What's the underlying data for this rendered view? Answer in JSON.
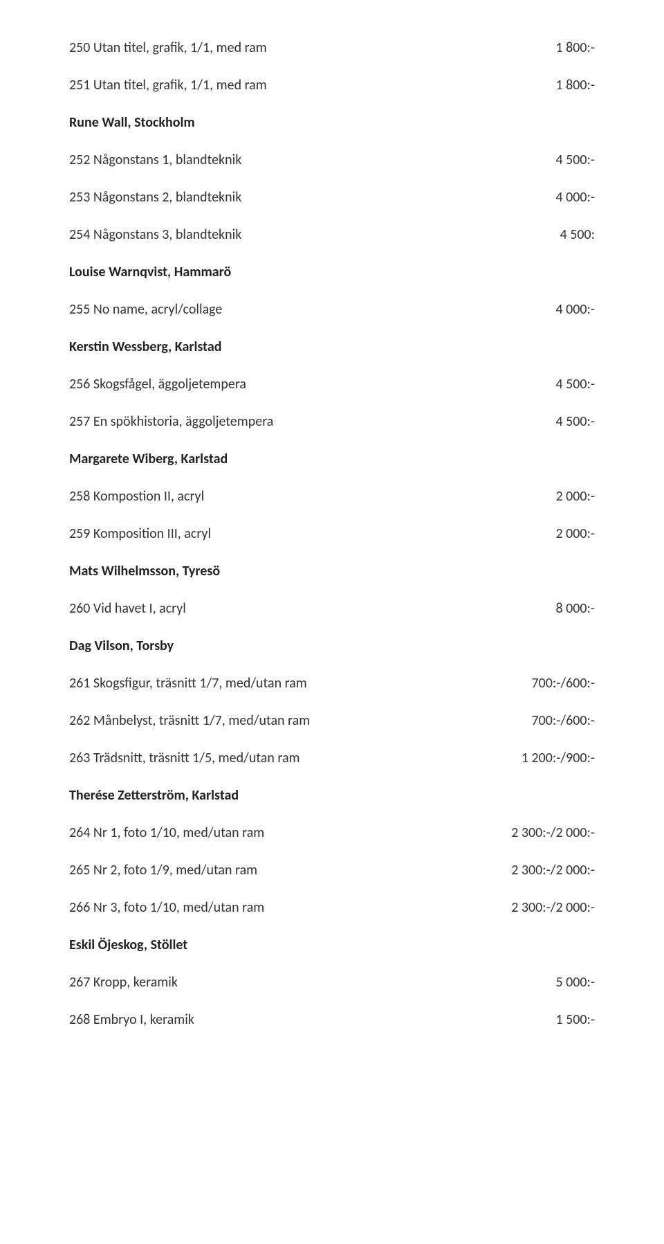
{
  "rows": [
    {
      "left": "250 Utan titel, grafik, 1/1, med ram",
      "right": "1 800:-",
      "bold": false
    },
    {
      "left": "251 Utan titel, grafik, 1/1, med ram",
      "right": "1 800:-",
      "bold": false
    },
    {
      "left": "Rune Wall, Stockholm",
      "right": "",
      "bold": true
    },
    {
      "left": "252 Någonstans 1, blandteknik",
      "right": "4 500:-",
      "bold": false
    },
    {
      "left": "253 Någonstans 2, blandteknik",
      "right": "4 000:-",
      "bold": false
    },
    {
      "left": "254 Någonstans 3, blandteknik",
      "right": "4 500:",
      "bold": false
    },
    {
      "left": "Louise Warnqvist, Hammarö",
      "right": "",
      "bold": true
    },
    {
      "left": "255 No name, acryl/collage",
      "right": "4 000:-",
      "bold": false
    },
    {
      "left": "Kerstin Wessberg, Karlstad",
      "right": "",
      "bold": true
    },
    {
      "left": "256 Skogsfågel, äggoljetempera",
      "right": "4 500:-",
      "bold": false
    },
    {
      "left": "257 En spökhistoria, äggoljetempera",
      "right": "4 500:-",
      "bold": false
    },
    {
      "left": "Margarete Wiberg, Karlstad",
      "right": "",
      "bold": true
    },
    {
      "left": "258 Kompostion II, acryl",
      "right": "2 000:-",
      "bold": false
    },
    {
      "left": "259 Komposition III, acryl",
      "right": "2 000:-",
      "bold": false
    },
    {
      "left": "Mats Wilhelmsson, Tyresö",
      "right": "",
      "bold": true
    },
    {
      "left": "260 Vid havet I, acryl",
      "right": "8 000:-",
      "bold": false
    },
    {
      "left": "Dag Vilson, Torsby",
      "right": "",
      "bold": true
    },
    {
      "left": "261 Skogsfigur, träsnitt 1/7, med/utan ram",
      "right": "700:-/600:-",
      "bold": false
    },
    {
      "left": "262 Månbelyst, träsnitt 1/7, med/utan ram",
      "right": "700:-/600:-",
      "bold": false
    },
    {
      "left": "263 Trädsnitt, träsnitt 1/5, med/utan ram",
      "right": "1 200:-/900:-",
      "bold": false
    },
    {
      "left": "Therése Zetterström, Karlstad",
      "right": "",
      "bold": true
    },
    {
      "left": "264 Nr 1, foto 1/10, med/utan ram",
      "right": "2 300:-/2 000:-",
      "bold": false
    },
    {
      "left": "265 Nr 2, foto 1/9, med/utan ram",
      "right": "2 300:-/2 000:-",
      "bold": false
    },
    {
      "left": "266 Nr 3, foto 1/10, med/utan ram",
      "right": "2 300:-/2 000:-",
      "bold": false
    },
    {
      "left": "Eskil Öjeskog, Stöllet",
      "right": "",
      "bold": true
    },
    {
      "left": "267 Kropp, keramik",
      "right": "5 000:-",
      "bold": false
    },
    {
      "left": "268 Embryo I, keramik",
      "right": "1 500:-",
      "bold": false
    }
  ]
}
